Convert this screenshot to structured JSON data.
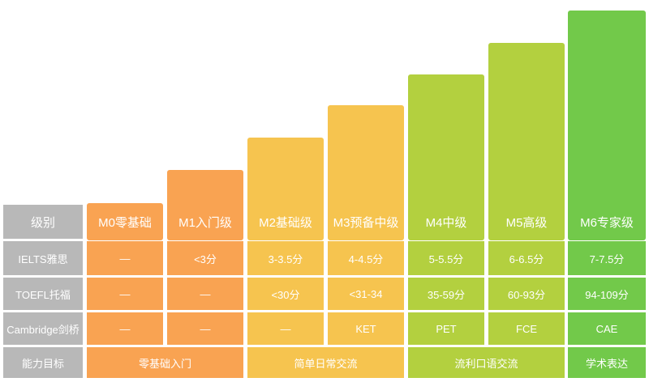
{
  "row_headers": {
    "level": "级别",
    "ielts": "IELTS雅思",
    "toefl": "TOEFL托福",
    "cambridge": "Cambridge剑桥",
    "goal": "能力目标"
  },
  "levels": [
    {
      "name": "M0零基础",
      "ielts": "—",
      "toefl": "—",
      "cambridge": "—",
      "color": "#f9a352"
    },
    {
      "name": "M1入门级",
      "ielts": "<3分",
      "toefl": "—",
      "cambridge": "—",
      "color": "#f9a352"
    },
    {
      "name": "M2基础级",
      "ielts": "3-3.5分",
      "toefl": "<30分",
      "cambridge": "—",
      "color": "#f6c44f"
    },
    {
      "name": "M3预备中级",
      "ielts": "4-4.5分",
      "toefl": "<31-34",
      "cambridge": "KET",
      "color": "#f6c44f"
    },
    {
      "name": "M4中级",
      "ielts": "5-5.5分",
      "toefl": "35-59分",
      "cambridge": "PET",
      "color": "#b3d03f"
    },
    {
      "name": "M5高级",
      "ielts": "6-6.5分",
      "toefl": "60-93分",
      "cambridge": "FCE",
      "color": "#b3d03f"
    },
    {
      "name": "M6专家级",
      "ielts": "7-7.5分",
      "toefl": "94-109分",
      "cambridge": "CAE",
      "color": "#72c94a"
    }
  ],
  "goals": [
    {
      "label": "零基础入门",
      "color": "#f9a352"
    },
    {
      "label": "简单日常交流",
      "color": "#f6c44f"
    },
    {
      "label": "流利口语交流",
      "color": "#b3d03f"
    },
    {
      "label": "学术表达",
      "color": "#72c94a"
    }
  ]
}
